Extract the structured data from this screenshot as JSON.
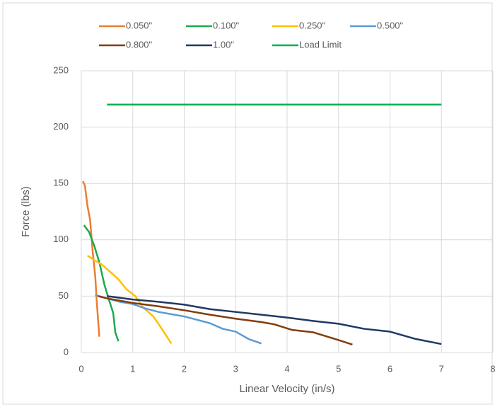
{
  "chart_data": {
    "type": "line",
    "x_label": "Linear Velocity (in/s)",
    "y_label": "Force (lbs)",
    "xlim": [
      0,
      8
    ],
    "xticks": [
      0,
      1,
      2,
      3,
      4,
      5,
      6,
      7,
      8
    ],
    "ylim": [
      0,
      250
    ],
    "yticks": [
      0,
      50,
      100,
      150,
      200,
      250
    ],
    "grid": true,
    "legend": "top",
    "series": [
      {
        "name": "0.050\"",
        "color": "#ED7D31",
        "x": [
          0.03,
          0.07,
          0.12,
          0.17,
          0.22,
          0.27,
          0.3,
          0.35
        ],
        "values": [
          152,
          148,
          130,
          118,
          90,
          68,
          45,
          14
        ]
      },
      {
        "name": "0.100\"",
        "color": "#1BAA4E",
        "x": [
          0.05,
          0.15,
          0.25,
          0.35,
          0.45,
          0.55,
          0.62,
          0.66,
          0.72
        ],
        "values": [
          113,
          107,
          95,
          80,
          60,
          45,
          35,
          18,
          10
        ]
      },
      {
        "name": "0.250\"",
        "color": "#FFC000",
        "x": [
          0.12,
          0.25,
          0.4,
          0.55,
          0.72,
          0.88,
          1.05,
          1.2,
          1.4,
          1.55,
          1.75
        ],
        "values": [
          86,
          82,
          78,
          72,
          65,
          56,
          50,
          40,
          32,
          22,
          8
        ]
      },
      {
        "name": "0.500\"",
        "color": "#5B9BD5",
        "x": [
          0.27,
          0.5,
          0.75,
          1.0,
          1.25,
          1.5,
          1.75,
          2.0,
          2.25,
          2.5,
          2.75,
          3.0,
          3.25,
          3.5
        ],
        "values": [
          51,
          48,
          45,
          43,
          39,
          36,
          34,
          32,
          29,
          26,
          21,
          18.5,
          12,
          8
        ]
      },
      {
        "name": "0.800\"",
        "color": "#843C0C",
        "x": [
          0.33,
          0.5,
          1.0,
          1.5,
          2.0,
          2.5,
          3.0,
          3.5,
          3.75,
          4.1,
          4.5,
          5.0,
          5.27
        ],
        "values": [
          50,
          48,
          44,
          41,
          37.5,
          33.5,
          30,
          27,
          25,
          20,
          18,
          11,
          7
        ]
      },
      {
        "name": "1.00\"",
        "color": "#203864",
        "x": [
          0.5,
          1.0,
          1.5,
          2.0,
          2.5,
          3.0,
          3.5,
          4.0,
          4.5,
          5.0,
          5.5,
          6.0,
          6.5,
          7.0
        ],
        "values": [
          50,
          47,
          45,
          42.5,
          38.5,
          36,
          33.5,
          31,
          28,
          25.5,
          21,
          18.5,
          12,
          7.5
        ]
      },
      {
        "name": "Load Limit",
        "color": "#00B050",
        "x": [
          0.5,
          7
        ],
        "values": [
          220,
          220
        ]
      }
    ]
  }
}
